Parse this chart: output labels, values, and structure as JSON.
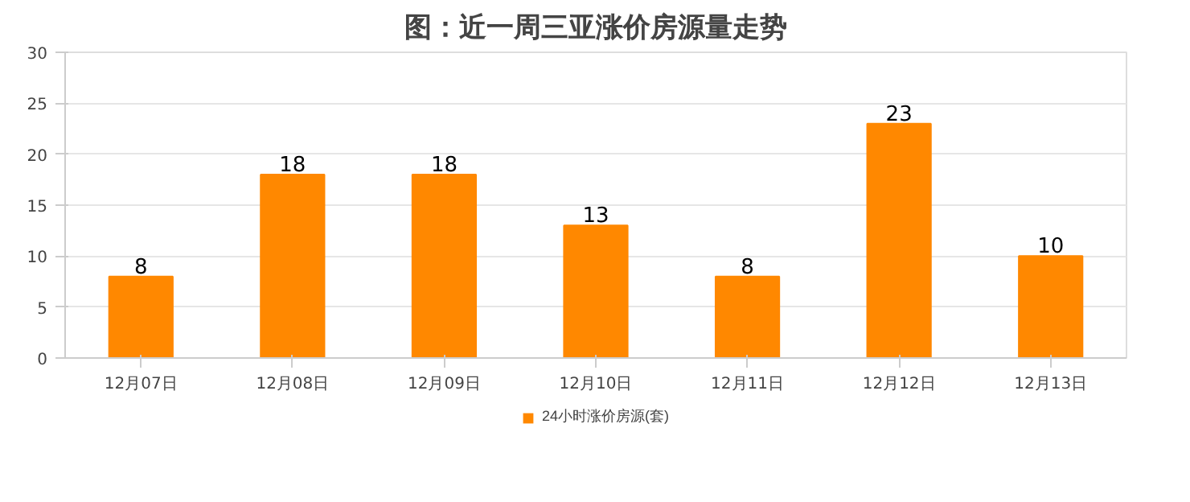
{
  "chart_data": {
    "type": "bar",
    "title": "图：近一周三亚涨价房源量走势",
    "categories": [
      "12月07日",
      "12月08日",
      "12月09日",
      "12月10日",
      "12月11日",
      "12月12日",
      "12月13日"
    ],
    "series": [
      {
        "name": "24小时涨价房源(套)",
        "color": "#ff8800",
        "values": [
          8,
          18,
          18,
          13,
          8,
          23,
          10
        ]
      }
    ],
    "ylim": [
      0,
      30
    ],
    "yticks": [
      0,
      5,
      10,
      15,
      20,
      25,
      30
    ],
    "grid": "y",
    "legend": "bottom",
    "data_labels": true
  }
}
